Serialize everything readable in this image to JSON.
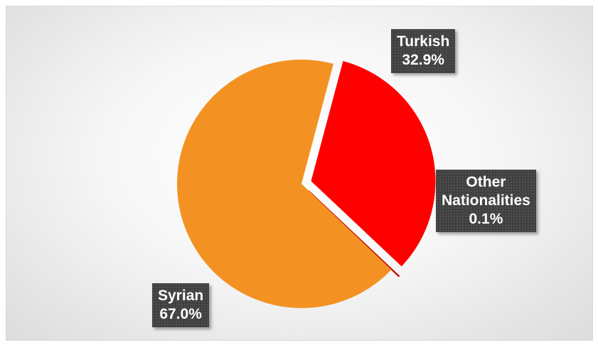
{
  "chart_data": {
    "type": "pie",
    "categories": [
      "Turkish",
      "Other Nationalities",
      "Syrian"
    ],
    "values": [
      32.9,
      0.1,
      67.0
    ],
    "value_labels": [
      "32.9%",
      "0.1%",
      "67.0%"
    ],
    "label_lines": [
      [
        "Turkish"
      ],
      [
        "Other",
        "Nationalities"
      ],
      [
        "Syrian"
      ]
    ],
    "colors": [
      "#ff0000",
      "#c00000",
      "#f39223"
    ],
    "exploded": [
      "Turkish",
      "Other Nationalities"
    ],
    "legend": "none"
  }
}
